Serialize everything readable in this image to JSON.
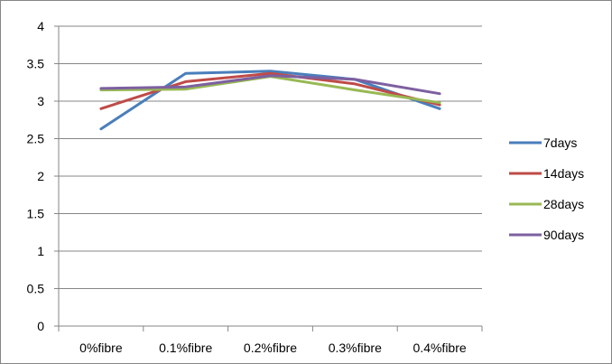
{
  "chart_data": {
    "type": "line",
    "title": "",
    "xlabel": "",
    "ylabel": "",
    "categories": [
      "0%fibre",
      "0.1%fibre",
      "0.2%fibre",
      "0.3%fibre",
      "0.4%fibre"
    ],
    "ylim": [
      0,
      4
    ],
    "yticks": [
      "0",
      "0.5",
      "1",
      "1.5",
      "2",
      "2.5",
      "3",
      "3.5",
      "4"
    ],
    "grid": "horizontal major gridlines",
    "legend_position": "right",
    "series": [
      {
        "name": "7days",
        "color": "#4a7ebb",
        "values": [
          2.63,
          3.37,
          3.4,
          3.29,
          2.9
        ]
      },
      {
        "name": "14days",
        "color": "#be4b48",
        "values": [
          2.9,
          3.26,
          3.37,
          3.23,
          2.95
        ]
      },
      {
        "name": "28days",
        "color": "#98b954",
        "values": [
          3.15,
          3.16,
          3.33,
          3.15,
          2.98
        ]
      },
      {
        "name": "90days",
        "color": "#7d60a0",
        "values": [
          3.17,
          3.19,
          3.34,
          3.29,
          3.1
        ]
      }
    ]
  }
}
